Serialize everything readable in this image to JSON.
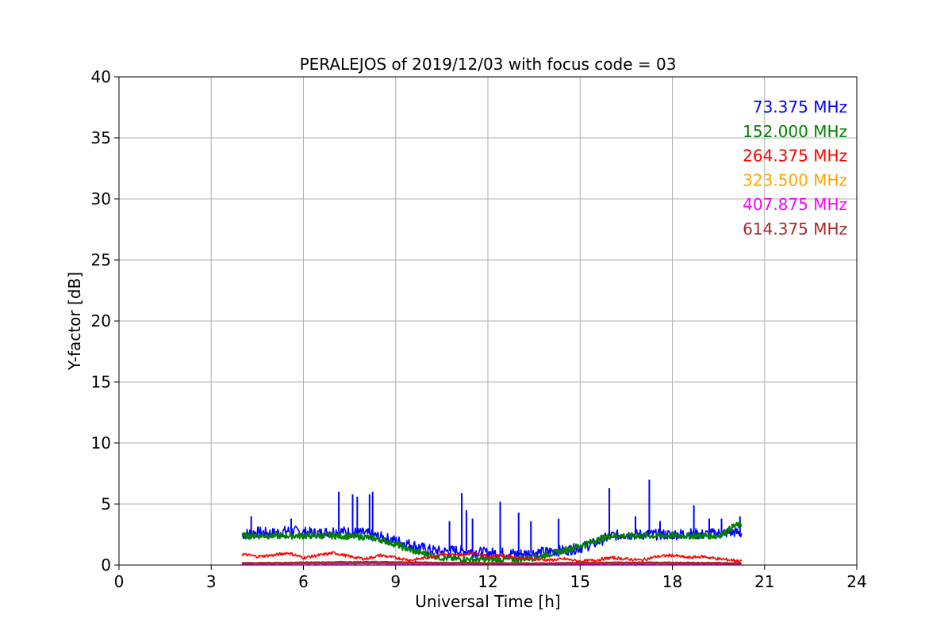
{
  "chart_data": {
    "type": "line",
    "title": "PERALEJOS of 2019/12/03 with focus code = 03",
    "xlabel": "Universal Time [h]",
    "ylabel": "Y-factor [dB]",
    "xlim": [
      0,
      24
    ],
    "ylim": [
      0,
      40
    ],
    "xticks": [
      0,
      3,
      6,
      9,
      12,
      15,
      18,
      21,
      24
    ],
    "yticks": [
      0,
      5,
      10,
      15,
      20,
      25,
      30,
      35,
      40
    ],
    "grid": true,
    "legend_position": "top-right",
    "series": [
      {
        "name": "73.375 MHz",
        "color": "#0000ff",
        "x": [
          4.0,
          4.5,
          5.0,
          5.5,
          6.0,
          6.5,
          7.0,
          7.5,
          8.0,
          8.5,
          9.0,
          9.5,
          10.0,
          10.5,
          11.0,
          11.5,
          12.0,
          12.5,
          13.0,
          13.5,
          14.0,
          14.5,
          15.0,
          15.5,
          16.0,
          16.5,
          17.0,
          17.5,
          18.0,
          18.5,
          19.0,
          19.5,
          20.0,
          20.25
        ],
        "y": [
          2.5,
          2.7,
          2.6,
          2.8,
          2.7,
          2.6,
          2.8,
          2.7,
          2.6,
          2.3,
          2.0,
          1.7,
          1.3,
          1.1,
          1.2,
          1.1,
          1.0,
          1.0,
          0.9,
          1.0,
          1.1,
          1.2,
          1.4,
          1.8,
          2.4,
          2.5,
          2.5,
          2.5,
          2.5,
          2.6,
          2.5,
          2.6,
          2.7,
          2.6
        ],
        "spikes": [
          {
            "x": 4.3,
            "y": 4.0
          },
          {
            "x": 5.6,
            "y": 3.8
          },
          {
            "x": 7.15,
            "y": 6.0
          },
          {
            "x": 7.6,
            "y": 5.8
          },
          {
            "x": 7.75,
            "y": 5.6
          },
          {
            "x": 8.15,
            "y": 5.8
          },
          {
            "x": 8.25,
            "y": 6.0
          },
          {
            "x": 10.75,
            "y": 3.6
          },
          {
            "x": 11.15,
            "y": 5.9
          },
          {
            "x": 11.3,
            "y": 4.5
          },
          {
            "x": 11.5,
            "y": 3.8
          },
          {
            "x": 12.4,
            "y": 5.2
          },
          {
            "x": 13.0,
            "y": 4.3
          },
          {
            "x": 13.4,
            "y": 3.6
          },
          {
            "x": 14.3,
            "y": 3.8
          },
          {
            "x": 15.95,
            "y": 6.3
          },
          {
            "x": 16.8,
            "y": 4.0
          },
          {
            "x": 17.25,
            "y": 7.0
          },
          {
            "x": 17.6,
            "y": 3.6
          },
          {
            "x": 18.7,
            "y": 4.9
          },
          {
            "x": 19.2,
            "y": 3.8
          },
          {
            "x": 19.6,
            "y": 3.8
          },
          {
            "x": 20.2,
            "y": 4.0
          }
        ]
      },
      {
        "name": "152.000 MHz",
        "color": "#008000",
        "x": [
          4.0,
          5.0,
          6.0,
          7.0,
          8.0,
          8.5,
          9.0,
          9.5,
          10.0,
          10.5,
          11.0,
          11.5,
          12.0,
          12.5,
          13.0,
          13.5,
          14.0,
          14.5,
          15.0,
          15.5,
          16.0,
          17.0,
          18.0,
          19.0,
          19.5,
          19.8,
          20.0,
          20.25
        ],
        "y": [
          2.4,
          2.4,
          2.4,
          2.4,
          2.3,
          2.1,
          1.7,
          1.2,
          0.9,
          0.6,
          0.5,
          0.45,
          0.45,
          0.45,
          0.5,
          0.6,
          0.9,
          1.2,
          1.6,
          2.0,
          2.4,
          2.4,
          2.4,
          2.4,
          2.4,
          2.8,
          3.2,
          3.3
        ]
      },
      {
        "name": "264.375 MHz",
        "color": "#ff0000",
        "x": [
          4.0,
          4.5,
          5.0,
          5.5,
          6.0,
          6.5,
          7.0,
          7.5,
          8.0,
          8.5,
          9.0,
          9.5,
          10.0,
          10.5,
          11.0,
          11.5,
          12.0,
          12.5,
          13.0,
          13.5,
          14.0,
          14.5,
          15.0,
          15.5,
          16.0,
          16.5,
          17.0,
          17.5,
          18.0,
          18.5,
          19.0,
          19.5,
          20.0,
          20.25
        ],
        "y": [
          0.9,
          0.7,
          0.8,
          1.0,
          0.6,
          0.8,
          1.0,
          0.7,
          0.5,
          0.8,
          0.6,
          0.4,
          0.6,
          0.9,
          0.8,
          1.0,
          0.7,
          0.8,
          0.6,
          0.5,
          0.4,
          0.5,
          0.3,
          0.4,
          0.6,
          0.5,
          0.4,
          0.7,
          0.8,
          0.6,
          0.7,
          0.5,
          0.4,
          0.3
        ]
      },
      {
        "name": "323.500 MHz",
        "color": "#ffa500",
        "x": [
          4.0,
          8.0,
          12.0,
          16.0,
          20.25
        ],
        "y": [
          0.15,
          0.15,
          0.12,
          0.15,
          0.15
        ]
      },
      {
        "name": "407.875 MHz",
        "color": "#ff00ff",
        "x": [
          4.0,
          8.0,
          12.0,
          16.0,
          20.25
        ],
        "y": [
          0.1,
          0.12,
          0.1,
          0.1,
          0.1
        ]
      },
      {
        "name": "614.375 MHz",
        "color": "#a52a2a",
        "x": [
          4.0,
          6.0,
          8.0,
          10.0,
          12.0,
          14.0,
          16.0,
          18.0,
          20.25
        ],
        "y": [
          0.15,
          0.2,
          0.25,
          0.2,
          0.15,
          0.15,
          0.2,
          0.2,
          0.15
        ]
      }
    ]
  }
}
